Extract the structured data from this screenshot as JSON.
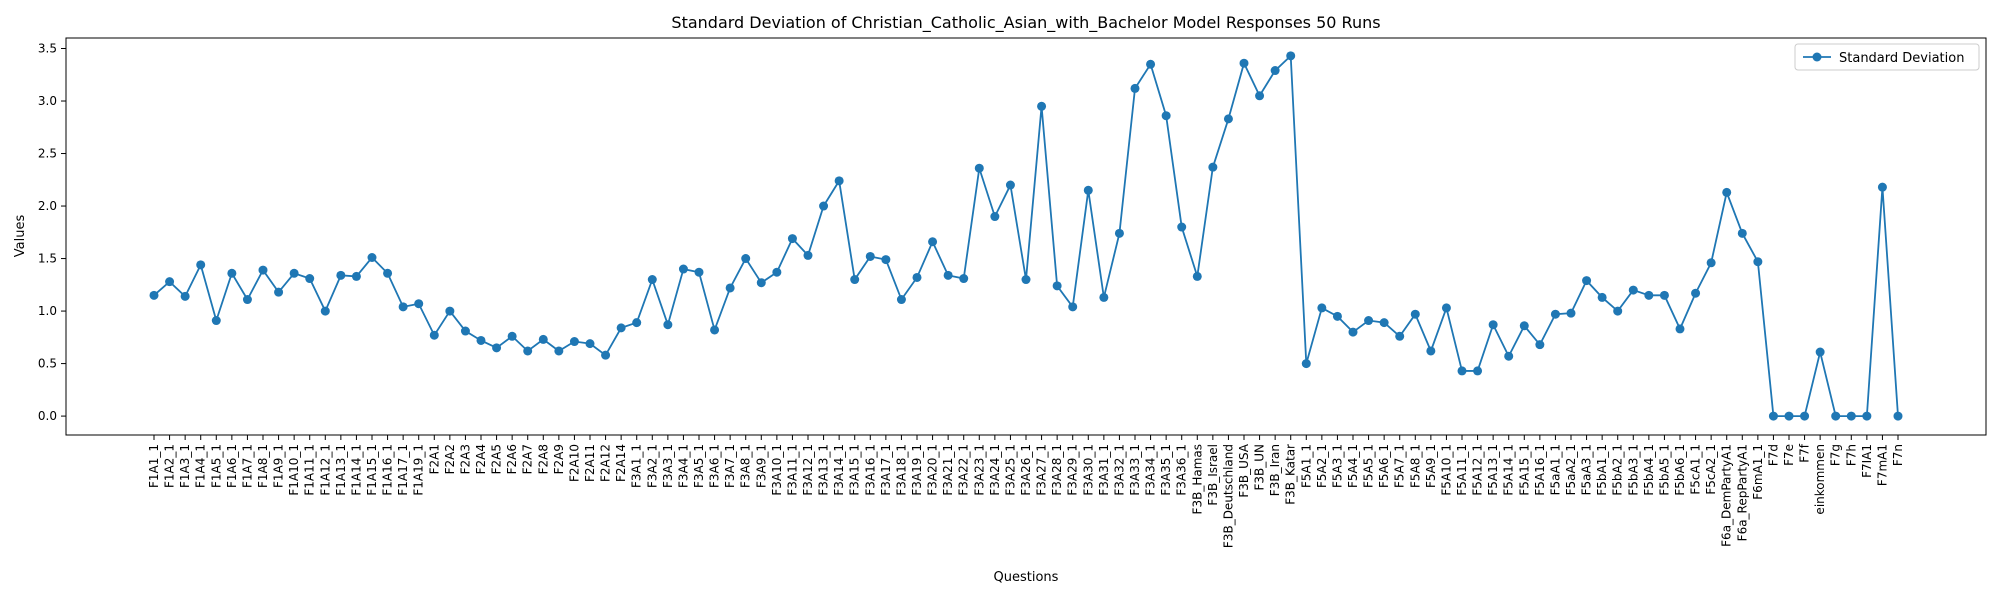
{
  "chart_data": {
    "type": "line",
    "title": "Standard Deviation of Christian_Catholic_Asian_with_Bachelor Model Responses 50 Runs",
    "xlabel": "Questions",
    "ylabel": "Values",
    "ylim": [
      -0.18,
      3.6
    ],
    "yticks": [
      "0.0",
      "0.5",
      "1.0",
      "1.5",
      "2.0",
      "2.5",
      "3.0",
      "3.5"
    ],
    "grid": false,
    "legend_position": "top-right",
    "series_color": "#1f77b4",
    "categories": [
      "F1A1_1",
      "F1A2_1",
      "F1A3_1",
      "F1A4_1",
      "F1A5_1",
      "F1A6_1",
      "F1A7_1",
      "F1A8_1",
      "F1A9_1",
      "F1A10_1",
      "F1A11_1",
      "F1A12_1",
      "F1A13_1",
      "F1A14_1",
      "F1A15_1",
      "F1A16_1",
      "F1A17_1",
      "F1A19_1",
      "F2A1",
      "F2A2",
      "F2A3",
      "F2A4",
      "F2A5",
      "F2A6",
      "F2A7",
      "F2A8",
      "F2A9",
      "F2A10",
      "F2A11",
      "F2A12",
      "F2A14",
      "F3A1_1",
      "F3A2_1",
      "F3A3_1",
      "F3A4_1",
      "F3A5_1",
      "F3A6_1",
      "F3A7_1",
      "F3A8_1",
      "F3A9_1",
      "F3A10_1",
      "F3A11_1",
      "F3A12_1",
      "F3A13_1",
      "F3A14_1",
      "F3A15_1",
      "F3A16_1",
      "F3A17_1",
      "F3A18_1",
      "F3A19_1",
      "F3A20_1",
      "F3A21_1",
      "F3A22_1",
      "F3A23_1",
      "F3A24_1",
      "F3A25_1",
      "F3A26_1",
      "F3A27_1",
      "F3A28_1",
      "F3A29_1",
      "F3A30_1",
      "F3A31_1",
      "F3A32_1",
      "F3A33_1",
      "F3A34_1",
      "F3A35_1",
      "F3A36_1",
      "F3B_Hamas",
      "F3B_Israel",
      "F3B_Deutschland",
      "F3B_USA",
      "F3B_UN",
      "F3B_Iran",
      "F3B_Katar",
      "F5A1_1",
      "F5A2_1",
      "F5A3_1",
      "F5A4_1",
      "F5A5_1",
      "F5A6_1",
      "F5A7_1",
      "F5A8_1",
      "F5A9_1",
      "F5A10_1",
      "F5A11_1",
      "F5A12_1",
      "F5A13_1",
      "F5A14_1",
      "F5A15_1",
      "F5A16_1",
      "F5aA1_1",
      "F5aA2_1",
      "F5aA3_1",
      "F5bA1_1",
      "F5bA2_1",
      "F5bA3_1",
      "F5bA4_1",
      "F5bA5_1",
      "F5bA6_1",
      "F5cA1_1",
      "F5cA2_1",
      "F6a_DemPartyA1",
      "F6a_RepPartyA1",
      "F6mA1_1",
      "F7d",
      "F7e",
      "F7f",
      "einkommen",
      "F7g",
      "F7h",
      "F7IA1",
      "F7mA1",
      "F7n"
    ],
    "series": [
      {
        "name": "Standard Deviation",
        "values": [
          1.15,
          1.28,
          1.14,
          1.44,
          0.91,
          1.36,
          1.11,
          1.39,
          1.18,
          1.36,
          1.31,
          1.0,
          1.34,
          1.33,
          1.51,
          1.36,
          1.04,
          1.07,
          0.77,
          1.0,
          0.81,
          0.72,
          0.65,
          0.76,
          0.62,
          0.73,
          0.62,
          0.71,
          0.69,
          0.58,
          0.84,
          0.89,
          1.3,
          0.87,
          1.4,
          1.37,
          0.82,
          1.22,
          1.5,
          1.27,
          1.37,
          1.69,
          1.53,
          2.0,
          2.24,
          1.3,
          1.52,
          1.49,
          1.11,
          1.32,
          1.66,
          1.34,
          1.31,
          2.36,
          1.9,
          2.2,
          1.3,
          2.95,
          1.24,
          1.04,
          2.15,
          1.13,
          1.74,
          3.12,
          3.35,
          2.86,
          1.8,
          1.33,
          2.37,
          2.83,
          3.36,
          3.05,
          3.29,
          3.43,
          0.5,
          1.03,
          0.95,
          0.8,
          0.91,
          0.89,
          0.76,
          0.97,
          0.62,
          1.03,
          0.43,
          0.43,
          0.87,
          0.57,
          0.86,
          0.68,
          0.97,
          0.98,
          1.29,
          1.13,
          1.0,
          1.2,
          1.15,
          1.15,
          0.83,
          1.17,
          1.46,
          2.13,
          1.74,
          1.47,
          0.0,
          0.0,
          0.0,
          0.61,
          0.0,
          0.0,
          0.0,
          2.18,
          0.0
        ]
      }
    ]
  }
}
